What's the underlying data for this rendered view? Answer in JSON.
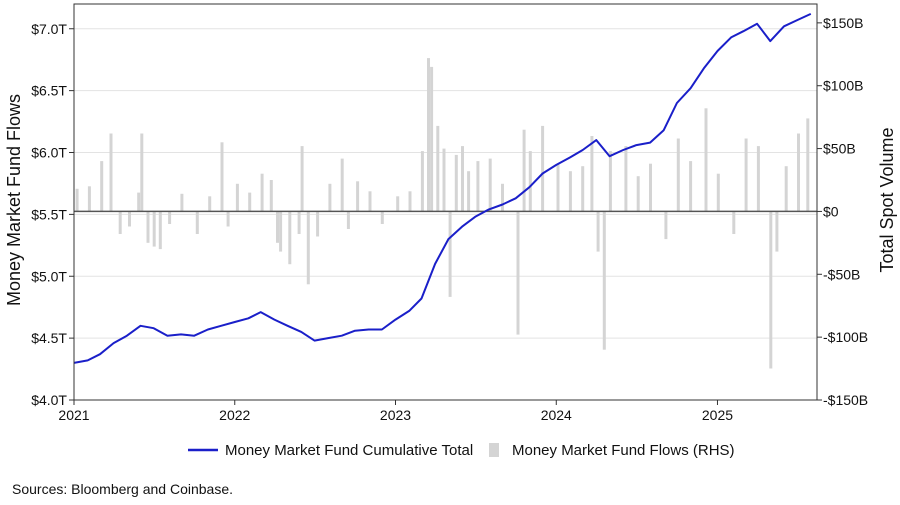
{
  "chart_data": {
    "type": "bar+line",
    "title": "",
    "source": "Sources: Bloomberg and Coinbase.",
    "x_axis": {
      "type": "date",
      "range": [
        "2021-01-01",
        "2025-08-15"
      ],
      "ticks": [
        {
          "date": "2021-01-01",
          "label": "2021"
        },
        {
          "date": "2022-01-01",
          "label": "2022"
        },
        {
          "date": "2023-01-01",
          "label": "2023"
        },
        {
          "date": "2024-01-01",
          "label": "2024"
        },
        {
          "date": "2025-01-01",
          "label": "2025"
        }
      ]
    },
    "y_left": {
      "label": "Money Market Fund Flows",
      "unit": "trillions USD",
      "range": [
        4.0,
        7.2
      ],
      "ticks": [
        4.0,
        4.5,
        5.0,
        5.5,
        6.0,
        6.5,
        7.0
      ],
      "tick_labels": [
        "$4.0T",
        "$4.5T",
        "$5.0T",
        "$5.5T",
        "$6.0T",
        "$6.5T",
        "$7.0T"
      ]
    },
    "y_right": {
      "label": "Total Spot Volume",
      "unit": "billions USD",
      "range": [
        -150,
        165
      ],
      "ticks": [
        -150,
        -100,
        -50,
        0,
        50,
        100,
        150
      ],
      "tick_labels": [
        "-$150B",
        "-$100B",
        "-$50B",
        "$0",
        "$50B",
        "$100B",
        "$150B"
      ]
    },
    "grid": "horizontal",
    "legend_position": "bottom",
    "colors": {
      "line": "#1a1fc9",
      "bars": "#d4d4d4",
      "grid": "#e3e3e3",
      "zero_line": "#555555",
      "frame": "#333333"
    },
    "series": [
      {
        "name": "Money Market Fund Cumulative Total",
        "type": "line",
        "axis": "left",
        "points": [
          [
            "2021-01-01",
            4.3
          ],
          [
            "2021-02-01",
            4.32
          ],
          [
            "2021-03-01",
            4.37
          ],
          [
            "2021-04-01",
            4.46
          ],
          [
            "2021-05-01",
            4.52
          ],
          [
            "2021-06-01",
            4.6
          ],
          [
            "2021-07-01",
            4.58
          ],
          [
            "2021-08-01",
            4.52
          ],
          [
            "2021-09-01",
            4.53
          ],
          [
            "2021-10-01",
            4.52
          ],
          [
            "2021-11-01",
            4.57
          ],
          [
            "2021-12-01",
            4.6
          ],
          [
            "2022-01-01",
            4.63
          ],
          [
            "2022-02-01",
            4.66
          ],
          [
            "2022-03-01",
            4.71
          ],
          [
            "2022-04-01",
            4.65
          ],
          [
            "2022-05-01",
            4.6
          ],
          [
            "2022-06-01",
            4.55
          ],
          [
            "2022-07-01",
            4.48
          ],
          [
            "2022-08-01",
            4.5
          ],
          [
            "2022-09-01",
            4.52
          ],
          [
            "2022-10-01",
            4.56
          ],
          [
            "2022-11-01",
            4.57
          ],
          [
            "2022-12-01",
            4.57
          ],
          [
            "2023-01-01",
            4.65
          ],
          [
            "2023-02-01",
            4.72
          ],
          [
            "2023-03-01",
            4.82
          ],
          [
            "2023-04-01",
            5.1
          ],
          [
            "2023-05-01",
            5.3
          ],
          [
            "2023-06-01",
            5.4
          ],
          [
            "2023-07-01",
            5.48
          ],
          [
            "2023-08-01",
            5.54
          ],
          [
            "2023-09-01",
            5.58
          ],
          [
            "2023-10-01",
            5.63
          ],
          [
            "2023-11-01",
            5.72
          ],
          [
            "2023-12-01",
            5.83
          ],
          [
            "2024-01-01",
            5.9
          ],
          [
            "2024-02-01",
            5.96
          ],
          [
            "2024-03-01",
            6.02
          ],
          [
            "2024-04-01",
            6.1
          ],
          [
            "2024-05-01",
            5.97
          ],
          [
            "2024-06-01",
            6.02
          ],
          [
            "2024-07-01",
            6.06
          ],
          [
            "2024-08-01",
            6.08
          ],
          [
            "2024-09-01",
            6.18
          ],
          [
            "2024-10-01",
            6.4
          ],
          [
            "2024-11-01",
            6.52
          ],
          [
            "2024-12-01",
            6.68
          ],
          [
            "2025-01-01",
            6.82
          ],
          [
            "2025-02-01",
            6.93
          ],
          [
            "2025-03-01",
            6.98
          ],
          [
            "2025-04-01",
            7.04
          ],
          [
            "2025-05-01",
            6.9
          ],
          [
            "2025-06-01",
            7.02
          ],
          [
            "2025-07-01",
            7.07
          ],
          [
            "2025-08-01",
            7.12
          ]
        ]
      },
      {
        "name": "Money Market Fund Flows (RHS)",
        "type": "bar",
        "axis": "right",
        "points": [
          [
            "2021-01-08",
            18
          ],
          [
            "2021-02-05",
            20
          ],
          [
            "2021-03-05",
            40
          ],
          [
            "2021-03-26",
            62
          ],
          [
            "2021-04-16",
            -18
          ],
          [
            "2021-05-07",
            -12
          ],
          [
            "2021-05-28",
            15
          ],
          [
            "2021-06-04",
            62
          ],
          [
            "2021-06-18",
            -25
          ],
          [
            "2021-07-02",
            -28
          ],
          [
            "2021-07-16",
            -30
          ],
          [
            "2021-08-06",
            -10
          ],
          [
            "2021-09-03",
            14
          ],
          [
            "2021-10-08",
            -18
          ],
          [
            "2021-11-05",
            12
          ],
          [
            "2021-12-03",
            55
          ],
          [
            "2021-12-17",
            -12
          ],
          [
            "2022-01-07",
            22
          ],
          [
            "2022-02-04",
            15
          ],
          [
            "2022-03-04",
            30
          ],
          [
            "2022-03-25",
            25
          ],
          [
            "2022-04-08",
            -25
          ],
          [
            "2022-04-15",
            -32
          ],
          [
            "2022-05-06",
            -42
          ],
          [
            "2022-05-27",
            -18
          ],
          [
            "2022-06-03",
            52
          ],
          [
            "2022-06-17",
            -58
          ],
          [
            "2022-07-08",
            -20
          ],
          [
            "2022-08-05",
            22
          ],
          [
            "2022-09-02",
            42
          ],
          [
            "2022-09-16",
            -14
          ],
          [
            "2022-10-07",
            24
          ],
          [
            "2022-11-04",
            16
          ],
          [
            "2022-12-02",
            -10
          ],
          [
            "2023-01-06",
            12
          ],
          [
            "2023-02-03",
            16
          ],
          [
            "2023-03-03",
            48
          ],
          [
            "2023-03-17",
            122
          ],
          [
            "2023-03-24",
            115
          ],
          [
            "2023-04-07",
            68
          ],
          [
            "2023-04-21",
            50
          ],
          [
            "2023-05-05",
            -68
          ],
          [
            "2023-05-19",
            45
          ],
          [
            "2023-06-02",
            52
          ],
          [
            "2023-06-16",
            32
          ],
          [
            "2023-07-07",
            40
          ],
          [
            "2023-08-04",
            42
          ],
          [
            "2023-09-01",
            22
          ],
          [
            "2023-10-06",
            -98
          ],
          [
            "2023-10-20",
            65
          ],
          [
            "2023-11-03",
            48
          ],
          [
            "2023-12-01",
            68
          ],
          [
            "2024-01-05",
            38
          ],
          [
            "2024-02-02",
            32
          ],
          [
            "2024-03-01",
            36
          ],
          [
            "2024-03-22",
            60
          ],
          [
            "2024-04-05",
            -32
          ],
          [
            "2024-04-19",
            -110
          ],
          [
            "2024-05-03",
            48
          ],
          [
            "2024-06-07",
            52
          ],
          [
            "2024-07-05",
            28
          ],
          [
            "2024-08-02",
            38
          ],
          [
            "2024-09-06",
            -22
          ],
          [
            "2024-10-04",
            58
          ],
          [
            "2024-11-01",
            40
          ],
          [
            "2024-12-06",
            82
          ],
          [
            "2025-01-03",
            30
          ],
          [
            "2025-02-07",
            -18
          ],
          [
            "2025-03-07",
            58
          ],
          [
            "2025-04-04",
            52
          ],
          [
            "2025-05-02",
            -125
          ],
          [
            "2025-05-16",
            -32
          ],
          [
            "2025-06-06",
            36
          ],
          [
            "2025-07-04",
            62
          ],
          [
            "2025-07-25",
            74
          ]
        ]
      }
    ]
  },
  "legend": [
    {
      "label": "Money Market Fund Cumulative Total",
      "symbol": "line",
      "color": "#1a1fc9"
    },
    {
      "label": "Money Market Fund Flows (RHS)",
      "symbol": "bar",
      "color": "#d4d4d4"
    }
  ]
}
